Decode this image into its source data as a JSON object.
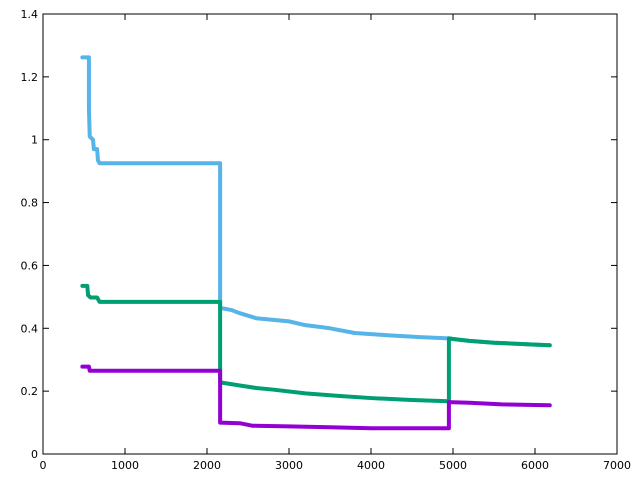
{
  "chart_data": {
    "type": "line",
    "title": "",
    "xlabel": "",
    "ylabel": "",
    "xlim": [
      0,
      7000
    ],
    "ylim": [
      0,
      1.4
    ],
    "xticks": [
      0,
      1000,
      2000,
      3000,
      4000,
      5000,
      6000,
      7000
    ],
    "yticks": [
      0,
      0.2,
      0.4,
      0.6,
      0.8,
      1,
      1.2,
      1.4
    ],
    "grid": false,
    "legend": "none",
    "series": [
      {
        "color": "#56b4e9",
        "points": [
          [
            480,
            1.262
          ],
          [
            560,
            1.262
          ],
          [
            560,
            1.1
          ],
          [
            570,
            1.01
          ],
          [
            610,
            1.0
          ],
          [
            620,
            0.97
          ],
          [
            660,
            0.97
          ],
          [
            670,
            0.935
          ],
          [
            690,
            0.925
          ],
          [
            2160,
            0.925
          ],
          [
            2160,
            0.465
          ],
          [
            2300,
            0.458
          ],
          [
            2400,
            0.448
          ],
          [
            2500,
            0.44
          ],
          [
            2600,
            0.432
          ],
          [
            3000,
            0.422
          ],
          [
            3200,
            0.41
          ],
          [
            3500,
            0.4
          ],
          [
            3800,
            0.385
          ],
          [
            4200,
            0.378
          ],
          [
            4600,
            0.372
          ],
          [
            4950,
            0.368
          ],
          [
            5000,
            0.366
          ],
          [
            5200,
            0.36
          ],
          [
            5500,
            0.354
          ],
          [
            6000,
            0.348
          ],
          [
            6180,
            0.346
          ]
        ]
      },
      {
        "color": "#009e73",
        "points": [
          [
            480,
            0.535
          ],
          [
            540,
            0.535
          ],
          [
            550,
            0.505
          ],
          [
            580,
            0.498
          ],
          [
            660,
            0.498
          ],
          [
            690,
            0.484
          ],
          [
            2160,
            0.484
          ],
          [
            2160,
            0.228
          ],
          [
            2400,
            0.218
          ],
          [
            2600,
            0.21
          ],
          [
            2800,
            0.205
          ],
          [
            3200,
            0.193
          ],
          [
            3600,
            0.185
          ],
          [
            4000,
            0.178
          ],
          [
            4500,
            0.172
          ],
          [
            4950,
            0.168
          ],
          [
            4950,
            0.368
          ],
          [
            5000,
            0.366
          ],
          [
            5200,
            0.36
          ],
          [
            5500,
            0.354
          ],
          [
            6000,
            0.348
          ],
          [
            6180,
            0.346
          ]
        ]
      },
      {
        "color": "#9400d3",
        "points": [
          [
            480,
            0.278
          ],
          [
            560,
            0.278
          ],
          [
            570,
            0.265
          ],
          [
            2160,
            0.265
          ],
          [
            2160,
            0.1
          ],
          [
            2400,
            0.098
          ],
          [
            2550,
            0.09
          ],
          [
            3000,
            0.088
          ],
          [
            3500,
            0.085
          ],
          [
            4000,
            0.082
          ],
          [
            4950,
            0.082
          ],
          [
            4950,
            0.165
          ],
          [
            5200,
            0.163
          ],
          [
            5600,
            0.158
          ],
          [
            6000,
            0.156
          ],
          [
            6180,
            0.155
          ]
        ]
      }
    ]
  }
}
